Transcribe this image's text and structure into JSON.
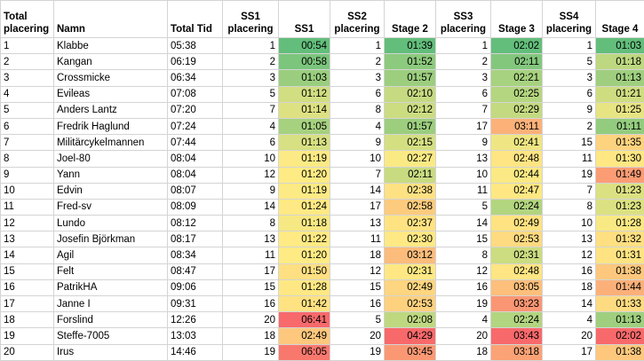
{
  "table": {
    "header": [
      "Total placering",
      "Namn",
      "Total Tid",
      "SS1 placering",
      "SS1",
      "SS2 placering",
      "Stage 2",
      "SS3 placering",
      "Stage 3",
      "SS4 placering",
      "Stage 4"
    ],
    "rows": [
      [
        1,
        "Klabbe",
        "05:38",
        1,
        "00:54",
        1,
        "01:39",
        1,
        "02:02",
        1,
        "01:03"
      ],
      [
        2,
        "Kangan",
        "06:19",
        2,
        "00:58",
        2,
        "01:52",
        2,
        "02:11",
        5,
        "01:18"
      ],
      [
        3,
        "Crossmicke",
        "06:34",
        3,
        "01:03",
        3,
        "01:57",
        3,
        "02:21",
        3,
        "01:13"
      ],
      [
        4,
        "Evileas",
        "07:08",
        5,
        "01:12",
        6,
        "02:10",
        6,
        "02:25",
        6,
        "01:21"
      ],
      [
        5,
        "Anders Lantz",
        "07:20",
        7,
        "01:14",
        8,
        "02:12",
        7,
        "02:29",
        9,
        "01:25"
      ],
      [
        6,
        "Fredrik Haglund",
        "07:24",
        4,
        "01:05",
        4,
        "01:57",
        17,
        "03:11",
        2,
        "01:11"
      ],
      [
        7,
        "Militärcykelmannen",
        "07:44",
        6,
        "01:13",
        9,
        "02:15",
        9,
        "02:41",
        15,
        "01:35"
      ],
      [
        8,
        "Joel-80",
        "08:04",
        10,
        "01:19",
        10,
        "02:27",
        13,
        "02:48",
        11,
        "01:30"
      ],
      [
        9,
        "Yann",
        "08:04",
        12,
        "01:20",
        7,
        "02:11",
        10,
        "02:44",
        19,
        "01:49"
      ],
      [
        10,
        "Edvin",
        "08:07",
        9,
        "01:19",
        14,
        "02:38",
        11,
        "02:47",
        7,
        "01:23"
      ],
      [
        11,
        "Fred-sv",
        "08:09",
        14,
        "01:24",
        17,
        "02:58",
        5,
        "02:24",
        8,
        "01:23"
      ],
      [
        12,
        "Lundo",
        "08:12",
        8,
        "01:18",
        13,
        "02:37",
        14,
        "02:49",
        10,
        "01:28"
      ],
      [
        13,
        "Josefin Björkman",
        "08:17",
        13,
        "01:22",
        11,
        "02:30",
        15,
        "02:53",
        13,
        "01:32"
      ],
      [
        14,
        "Agil",
        "08:34",
        11,
        "01:20",
        18,
        "03:12",
        8,
        "02:31",
        12,
        "01:31"
      ],
      [
        15,
        "Felt",
        "08:47",
        17,
        "01:50",
        12,
        "02:31",
        12,
        "02:48",
        16,
        "01:38"
      ],
      [
        16,
        "PatrikHA",
        "09:06",
        15,
        "01:28",
        15,
        "02:49",
        16,
        "03:05",
        18,
        "01:44"
      ],
      [
        17,
        "Janne I",
        "09:31",
        16,
        "01:42",
        16,
        "02:53",
        19,
        "03:23",
        14,
        "01:33"
      ],
      [
        18,
        "Forslind",
        "12:26",
        20,
        "06:41",
        5,
        "02:08",
        4,
        "02:24",
        4,
        "01:13"
      ],
      [
        19,
        "Steffe-7005",
        "13:03",
        18,
        "02:49",
        20,
        "04:29",
        20,
        "03:43",
        20,
        "02:02"
      ],
      [
        20,
        "Irus",
        "14:46",
        19,
        "06:05",
        19,
        "03:45",
        18,
        "03:18",
        17,
        "01:38"
      ]
    ]
  }
}
